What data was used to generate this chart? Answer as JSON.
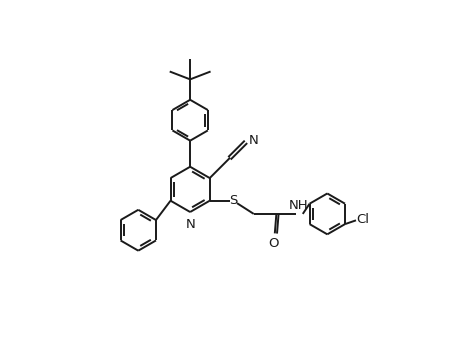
{
  "background_color": "#ffffff",
  "line_color": "#1a1a1a",
  "line_width": 1.4,
  "font_size": 9.5,
  "figsize": [
    4.63,
    3.47
  ],
  "dpi": 100,
  "xlim": [
    0,
    10
  ],
  "ylim": [
    0,
    8.5
  ]
}
